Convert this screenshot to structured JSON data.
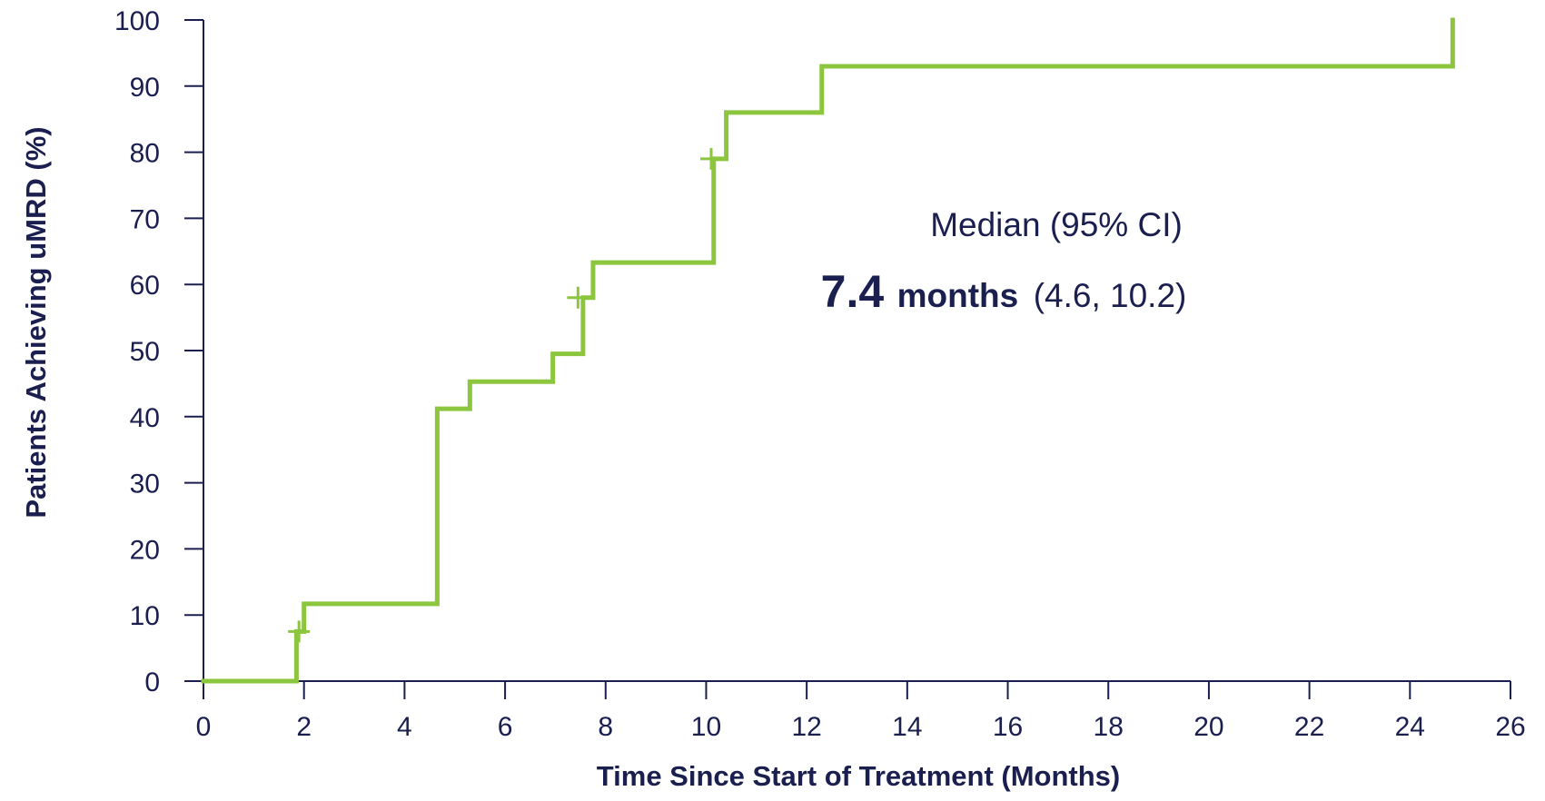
{
  "chart_data": {
    "type": "line",
    "xlabel": "Time Since Start of Treatment (Months)",
    "ylabel": "Patients Achieving uMRD (%)",
    "xlim": [
      0,
      26
    ],
    "ylim": [
      0,
      100
    ],
    "xticks": [
      0,
      2,
      4,
      6,
      8,
      10,
      12,
      14,
      16,
      18,
      20,
      22,
      24,
      26
    ],
    "yticks": [
      0,
      10,
      20,
      30,
      40,
      50,
      60,
      70,
      80,
      90,
      100
    ],
    "grid": false,
    "series": [
      {
        "color": "#8cc63f",
        "step": true,
        "points": [
          [
            0,
            0
          ],
          [
            1.85,
            0
          ],
          [
            1.85,
            7.5
          ],
          [
            2.0,
            7.5
          ],
          [
            2.0,
            11.7
          ],
          [
            4.65,
            11.7
          ],
          [
            4.65,
            41.2
          ],
          [
            5.3,
            41.2
          ],
          [
            5.3,
            45.3
          ],
          [
            6.95,
            45.3
          ],
          [
            6.95,
            49.5
          ],
          [
            7.55,
            49.5
          ],
          [
            7.55,
            58
          ],
          [
            7.75,
            58
          ],
          [
            7.75,
            63.3
          ],
          [
            10.15,
            63.3
          ],
          [
            10.15,
            79
          ],
          [
            10.4,
            79
          ],
          [
            10.4,
            86
          ],
          [
            12.3,
            86
          ],
          [
            12.3,
            93
          ],
          [
            24.85,
            93
          ],
          [
            24.85,
            100
          ]
        ],
        "censored": [
          {
            "x": 1.9,
            "y": 7.5
          },
          {
            "x": 7.45,
            "y": 58
          },
          {
            "x": 10.1,
            "y": 79
          }
        ]
      }
    ],
    "annotations": {
      "median_label": "Median (95% CI)",
      "median_value": "7.4",
      "median_unit": "months",
      "median_ci": "(4.6, 10.2)"
    }
  }
}
